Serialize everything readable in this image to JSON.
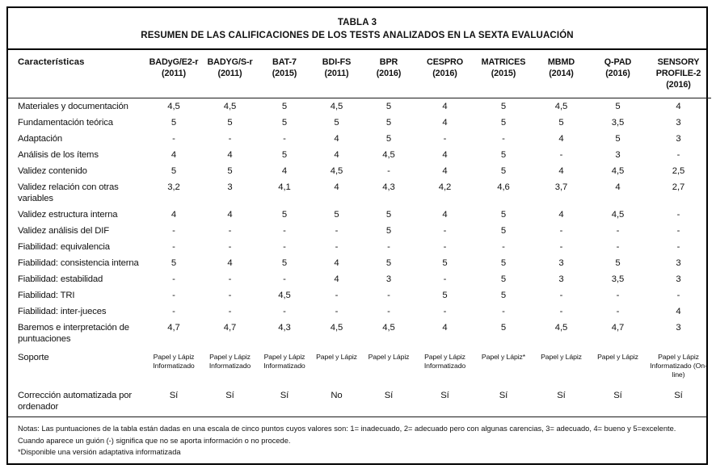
{
  "document": {
    "title_line1": "TABLA 3",
    "title_line2": "RESUMEN DE LAS CALIFICACIONES DE LOS TESTS ANALIZADOS EN LA SEXTA EVALUACIÓN"
  },
  "table": {
    "feature_column_header": "Características",
    "columns": [
      {
        "name": "BADyG/E2-r",
        "year": "(2011)"
      },
      {
        "name": "BADYG/S-r",
        "year": "(2011)"
      },
      {
        "name": "BAT-7",
        "year": "(2015)"
      },
      {
        "name": "BDI-FS",
        "year": "(2011)"
      },
      {
        "name": "BPR",
        "year": "(2016)"
      },
      {
        "name": "CESPRO",
        "year": "(2016)"
      },
      {
        "name": "MATRICES",
        "year": "(2015)"
      },
      {
        "name": "MBMD",
        "year": "(2014)"
      },
      {
        "name": "Q-PAD",
        "year": "(2016)"
      },
      {
        "name": "SENSORY",
        "year": "PROFILE-2 (2016)"
      }
    ],
    "rows": [
      {
        "label": "Materiales y documentación",
        "values": [
          "4,5",
          "4,5",
          "5",
          "4,5",
          "5",
          "4",
          "5",
          "4,5",
          "5",
          "4"
        ]
      },
      {
        "label": "Fundamentación teórica",
        "values": [
          "5",
          "5",
          "5",
          "5",
          "5",
          "4",
          "5",
          "5",
          "3,5",
          "3"
        ]
      },
      {
        "label": "Adaptación",
        "values": [
          "-",
          "-",
          "-",
          "4",
          "5",
          "-",
          "-",
          "4",
          "5",
          "3"
        ]
      },
      {
        "label": "Análisis de los ítems",
        "values": [
          "4",
          "4",
          "5",
          "4",
          "4,5",
          "4",
          "5",
          "-",
          "3",
          "-"
        ]
      },
      {
        "label": "Validez contenido",
        "values": [
          "5",
          "5",
          "4",
          "4,5",
          "-",
          "4",
          "5",
          "4",
          "4,5",
          "2,5"
        ]
      },
      {
        "label": "Validez relación con otras variables",
        "values": [
          "3,2",
          "3",
          "4,1",
          "4",
          "4,3",
          "4,2",
          "4,6",
          "3,7",
          "4",
          "2,7"
        ]
      },
      {
        "label": "Validez estructura interna",
        "values": [
          "4",
          "4",
          "5",
          "5",
          "5",
          "4",
          "5",
          "4",
          "4,5",
          "-"
        ]
      },
      {
        "label": "Validez análisis del DIF",
        "values": [
          "-",
          "-",
          "-",
          "-",
          "5",
          "-",
          "5",
          "-",
          "-",
          "-"
        ]
      },
      {
        "label": "Fiabilidad: equivalencia",
        "values": [
          "-",
          "-",
          "-",
          "-",
          "-",
          "-",
          "-",
          "-",
          "-",
          "-"
        ]
      },
      {
        "label": "Fiabilidad: consistencia interna",
        "values": [
          "5",
          "4",
          "5",
          "4",
          "5",
          "5",
          "5",
          "3",
          "5",
          "3"
        ]
      },
      {
        "label": "Fiabilidad: estabilidad",
        "values": [
          "-",
          "-",
          "-",
          "4",
          "3",
          "-",
          "5",
          "3",
          "3,5",
          "3"
        ]
      },
      {
        "label": "Fiabilidad: TRI",
        "values": [
          "-",
          "-",
          "4,5",
          "-",
          "-",
          "5",
          "5",
          "-",
          "-",
          "-"
        ]
      },
      {
        "label": "Fiabilidad: inter-jueces",
        "values": [
          "-",
          "-",
          "-",
          "-",
          "-",
          "-",
          "-",
          "-",
          "-",
          "4"
        ]
      },
      {
        "label": "Baremos e interpretación de puntuaciones",
        "values": [
          "4,7",
          "4,7",
          "4,3",
          "4,5",
          "4,5",
          "4",
          "5",
          "4,5",
          "4,7",
          "3"
        ]
      },
      {
        "label": "Soporte",
        "style": "small",
        "values": [
          "Papel y Lápiz Informatizado",
          "Papel y Lápiz Informatizado",
          "Papel y Lápiz Informatizado",
          "Papel y Lápiz",
          "Papel y Lápiz",
          "Papel y Lápiz Informatizado",
          "Papel y Lápiz*",
          "Papel y Lápiz",
          "Papel y Lápiz",
          "Papel y Lápiz Informatizado (On-line)"
        ]
      },
      {
        "label": "Corrección automatizada por ordenador",
        "style": "gap",
        "values": [
          "Sí",
          "Sí",
          "Sí",
          "No",
          "Sí",
          "Sí",
          "Sí",
          "Sí",
          "Sí",
          "Sí"
        ]
      }
    ],
    "notes": [
      "Notas: Las puntuaciones de la tabla están dadas en una escala de cinco puntos cuyos valores son: 1= inadecuado, 2= adecuado pero con algunas carencias, 3= adecuado, 4= bueno y 5=excelente.",
      "Cuando aparece un guión (-) significa que no se aporta información o no procede.",
      "*Disponible una versión adaptativa informatizada"
    ]
  }
}
